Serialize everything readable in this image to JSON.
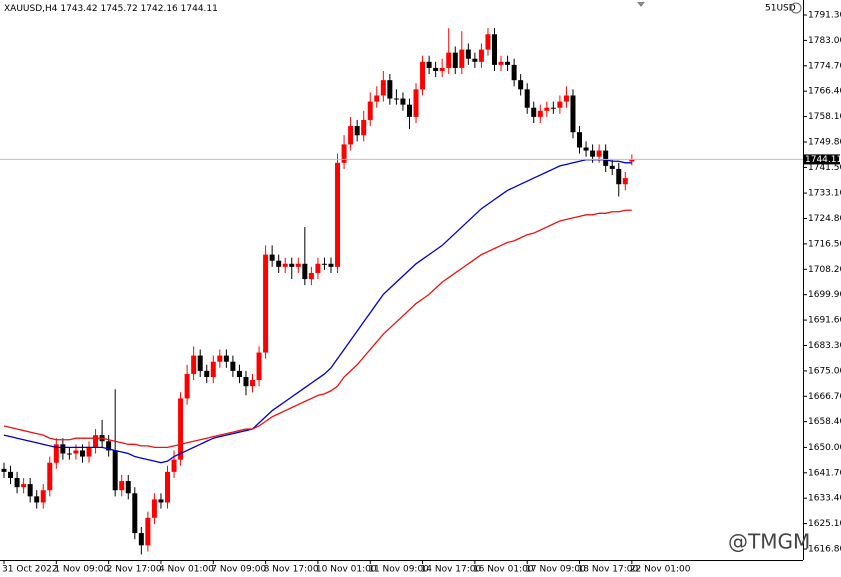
{
  "chart_data": {
    "type": "candlestick",
    "title": "XAUUSD,H4",
    "corner_label": "51USD",
    "watermark": "@TMGM",
    "bull_color": "#ff0000",
    "bear_color": "#000000",
    "categories": [
      "31 Oct 2022",
      null,
      null,
      null,
      null,
      null,
      null,
      null,
      "1 Nov 09:00",
      null,
      null,
      null,
      null,
      null,
      null,
      null,
      "2 Nov 17:00",
      null,
      null,
      null,
      null,
      null,
      null,
      null,
      "4 Nov 01:00",
      null,
      null,
      null,
      null,
      null,
      null,
      null,
      "7 Nov 09:00",
      null,
      null,
      null,
      null,
      null,
      null,
      null,
      "8 Nov 17:00",
      null,
      null,
      null,
      null,
      null,
      null,
      null,
      "10 Nov 01:00",
      null,
      null,
      null,
      null,
      null,
      null,
      null,
      "11 Nov 09:00",
      null,
      null,
      null,
      null,
      null,
      null,
      null,
      "14 Nov 17:00",
      null,
      null,
      null,
      null,
      null,
      null,
      null,
      "16 Nov 01:00",
      null,
      null,
      null,
      null,
      null,
      null,
      null,
      "17 Nov 09:00",
      null,
      null,
      null,
      null,
      null,
      null,
      null,
      "18 Nov 17:00",
      null,
      null,
      null,
      null,
      null,
      null,
      null,
      "22 Nov 01:00"
    ],
    "open": [
      1643,
      1642,
      1640,
      1637,
      1638,
      1634,
      1632,
      1636,
      1645,
      1651,
      1648,
      1648,
      1649,
      1647,
      1650,
      1654,
      1652,
      1649,
      1636,
      1639,
      1635,
      1622,
      1618,
      1627,
      1633,
      1632,
      1642,
      1646,
      1666,
      1674,
      1680,
      1675,
      1673,
      1678,
      1680,
      1678,
      1675,
      1673,
      1670,
      1672,
      1681,
      1713,
      1711,
      1709,
      1710,
      1709,
      1710,
      1705,
      1707,
      1710,
      1710,
      1709,
      1743,
      1749,
      1755,
      1752,
      1757,
      1763,
      1765,
      1770,
      1764,
      1764,
      1762,
      1758,
      1767,
      1776,
      1774,
      1773,
      1774,
      1779,
      1774,
      1780,
      1777,
      1776,
      1780,
      1785,
      1775,
      1776,
      1775,
      1770,
      1767,
      1761,
      1758,
      1760,
      1761,
      1761,
      1763,
      1765,
      1753,
      1748,
      1747,
      1745,
      1747,
      1742,
      1741,
      1736,
      1743.42
    ],
    "high": [
      1645,
      1644,
      1642,
      1640,
      1640,
      1636,
      1638,
      1647,
      1653,
      1653,
      1650,
      1651,
      1651,
      1652,
      1656,
      1659,
      1654,
      1669,
      1641,
      1641,
      1637,
      1624,
      1629,
      1635,
      1635,
      1644,
      1649,
      1668,
      1677,
      1683,
      1682,
      1677,
      1680,
      1682,
      1682,
      1680,
      1677,
      1675,
      1674,
      1683,
      1716,
      1716,
      1713,
      1712,
      1712,
      1712,
      1722,
      1709,
      1712,
      1712,
      1712,
      1746,
      1752,
      1758,
      1757,
      1760,
      1766,
      1768,
      1773,
      1772,
      1767,
      1766,
      1764,
      1769,
      1778,
      1778,
      1776,
      1777,
      1787,
      1781,
      1786,
      1782,
      1779,
      1782,
      1787,
      1787,
      1778,
      1778,
      1777,
      1772,
      1769,
      1763,
      1762,
      1763,
      1763,
      1765,
      1768,
      1767,
      1755,
      1750,
      1749,
      1749,
      1749,
      1744,
      1743,
      1740,
      1745.72
    ],
    "low": [
      1640,
      1638,
      1635,
      1635,
      1632,
      1630,
      1630,
      1634,
      1643,
      1646,
      1646,
      1646,
      1645,
      1645,
      1648,
      1650,
      1647,
      1634,
      1634,
      1633,
      1620,
      1615,
      1616,
      1625,
      1630,
      1630,
      1640,
      1644,
      1664,
      1672,
      1673,
      1671,
      1671,
      1676,
      1676,
      1673,
      1671,
      1667,
      1668,
      1670,
      1679,
      1709,
      1707,
      1707,
      1705,
      1707,
      1703,
      1703,
      1705,
      1708,
      1707,
      1707,
      1741,
      1747,
      1750,
      1750,
      1755,
      1761,
      1763,
      1762,
      1762,
      1760,
      1754,
      1756,
      1765,
      1772,
      1771,
      1771,
      1772,
      1772,
      1772,
      1775,
      1774,
      1774,
      1778,
      1773,
      1773,
      1773,
      1768,
      1765,
      1759,
      1756,
      1756,
      1758,
      1759,
      1759,
      1761,
      1751,
      1746,
      1745,
      1743,
      1743,
      1740,
      1739,
      1732,
      1734,
      1742.16
    ],
    "close": [
      1642,
      1640,
      1637,
      1638,
      1634,
      1632,
      1636,
      1645,
      1651,
      1648,
      1648,
      1649,
      1647,
      1650,
      1654,
      1652,
      1649,
      1636,
      1639,
      1635,
      1622,
      1618,
      1627,
      1633,
      1632,
      1642,
      1646,
      1666,
      1674,
      1680,
      1675,
      1673,
      1678,
      1680,
      1678,
      1675,
      1673,
      1670,
      1672,
      1681,
      1713,
      1711,
      1709,
      1710,
      1709,
      1710,
      1705,
      1707,
      1710,
      1710,
      1709,
      1743,
      1749,
      1755,
      1752,
      1757,
      1763,
      1765,
      1770,
      1764,
      1764,
      1762,
      1758,
      1767,
      1776,
      1774,
      1773,
      1774,
      1779,
      1774,
      1780,
      1777,
      1776,
      1780,
      1785,
      1775,
      1776,
      1775,
      1770,
      1767,
      1761,
      1758,
      1760,
      1761,
      1761,
      1763,
      1765,
      1753,
      1748,
      1747,
      1745,
      1747,
      1742,
      1741,
      1736,
      1738,
      1744.11
    ],
    "lines": [
      {
        "color": "#0000cc",
        "values": [
          1654,
          1653.5,
          1653,
          1652.5,
          1652,
          1651.5,
          1651,
          1650.5,
          1650,
          1650,
          1650,
          1650,
          1650,
          1650,
          1650,
          1650,
          1649.5,
          1649,
          1648.5,
          1648,
          1647,
          1646.5,
          1646,
          1645.5,
          1645,
          1645.5,
          1647,
          1648,
          1649,
          1650,
          1651,
          1652,
          1653,
          1653.5,
          1654,
          1654.5,
          1655,
          1655.5,
          1656,
          1658,
          1660,
          1662,
          1663.5,
          1665,
          1666.5,
          1668,
          1669.5,
          1671,
          1672.5,
          1674,
          1676,
          1679,
          1682,
          1685,
          1688,
          1691,
          1694,
          1697,
          1700,
          1702,
          1704,
          1706,
          1708,
          1710,
          1711.5,
          1713,
          1714.5,
          1716,
          1718,
          1720,
          1722,
          1724,
          1726,
          1728,
          1729.5,
          1731,
          1732.5,
          1734,
          1735,
          1736,
          1737,
          1738,
          1739,
          1740,
          1741,
          1742,
          1742.5,
          1743,
          1743.5,
          1744,
          1744,
          1744,
          1744,
          1743.5,
          1743.5,
          1743,
          1743
        ]
      },
      {
        "color": "#ee1111",
        "values": [
          1657,
          1656.5,
          1656,
          1655.5,
          1655,
          1654.5,
          1654,
          1653,
          1652.5,
          1652.5,
          1652.5,
          1653,
          1653,
          1653,
          1653,
          1653,
          1652.5,
          1652,
          1651.5,
          1651,
          1651,
          1650.5,
          1650.5,
          1650,
          1650,
          1650,
          1650.5,
          1651,
          1651.5,
          1652,
          1652.5,
          1653,
          1653.5,
          1654,
          1654.5,
          1655,
          1655.5,
          1656,
          1656,
          1657,
          1658.5,
          1660,
          1661,
          1662,
          1663,
          1664,
          1665,
          1666,
          1667,
          1667.5,
          1668.5,
          1670,
          1673,
          1675,
          1677,
          1679.5,
          1682,
          1684.5,
          1687,
          1689,
          1691,
          1693,
          1695,
          1697,
          1698.5,
          1700,
          1702,
          1704,
          1705.5,
          1707,
          1708.5,
          1710,
          1711.5,
          1713,
          1714,
          1715,
          1716,
          1717,
          1717.5,
          1718.5,
          1719.5,
          1720,
          1721,
          1722,
          1723,
          1724,
          1724.5,
          1725,
          1725.5,
          1726,
          1726,
          1726.5,
          1726.5,
          1727,
          1727,
          1727.5,
          1727.5
        ]
      }
    ],
    "ylim": [
      1613.2,
      1796.2
    ],
    "yticks": [
      {
        "value": 1791.3,
        "label": "1791.30"
      },
      {
        "value": 1783,
        "label": "1783.00"
      },
      {
        "value": 1774.7,
        "label": "1774.70"
      },
      {
        "value": 1766.4,
        "label": "1766.40"
      },
      {
        "value": 1758.1,
        "label": "1758.10"
      },
      {
        "value": 1749.8,
        "label": "1749.80"
      },
      {
        "value": 1741.5,
        "label": "1741.50"
      },
      {
        "value": 1733.1,
        "label": "1733.10"
      },
      {
        "value": 1724.8,
        "label": "1724.80"
      },
      {
        "value": 1716.5,
        "label": "1716.50"
      },
      {
        "value": 1708.2,
        "label": "1708.20"
      },
      {
        "value": 1699.9,
        "label": "1699.90"
      },
      {
        "value": 1691.6,
        "label": "1691.60"
      },
      {
        "value": 1683.3,
        "label": "1683.30"
      },
      {
        "value": 1675,
        "label": "1675.00"
      },
      {
        "value": 1666.7,
        "label": "1666.70"
      },
      {
        "value": 1658.4,
        "label": "1658.40"
      },
      {
        "value": 1650,
        "label": "1650.00"
      },
      {
        "value": 1641.7,
        "label": "1641.70"
      },
      {
        "value": 1633.4,
        "label": "1633.40"
      },
      {
        "value": 1625.1,
        "label": "1625.10"
      },
      {
        "value": 1616.8,
        "label": "1616.80"
      }
    ]
  }
}
